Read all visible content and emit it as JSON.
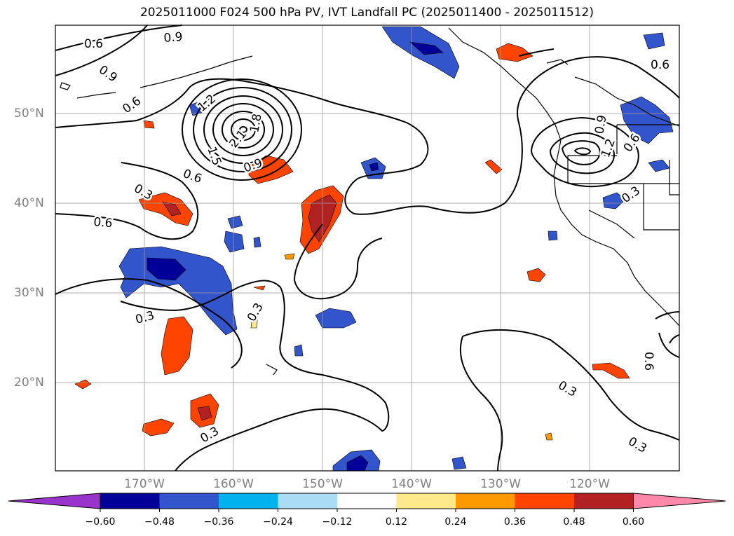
{
  "title": "2025011000 F024 500 hPa PV, IVT Landfall PC (2025011400 - 2025011512)",
  "lat_labels": [
    "50°N",
    "40°N",
    "30°N",
    "20°N"
  ],
  "lon_labels": [
    "170°W",
    "160°W",
    "150°W",
    "140°W",
    "130°W",
    "120°W"
  ],
  "colorbar": {
    "ticks": [
      "−0.60",
      "−0.48",
      "−0.36",
      "−0.24",
      "−0.12",
      "0.12",
      "0.24",
      "0.36",
      "0.48",
      "0.60"
    ],
    "colors": [
      "#9933cc",
      "#000099",
      "#3355cc",
      "#00b2ee",
      "#aadcf5",
      "#ffffff",
      "#ffe98a",
      "#ff9900",
      "#ff4400",
      "#b22222",
      "#ff88aa"
    ]
  },
  "contour_labels": [
    "0.6",
    "0.9",
    "0.9",
    "0.6",
    "1.2",
    "1.8",
    "1.5",
    "2.1",
    "0.9",
    "0.6",
    "0.3",
    "0.6",
    "0.3",
    "0.3",
    "0.6",
    "0.9",
    "1.2",
    "0.6",
    "0.3",
    "0.3",
    "0.3",
    "0.3",
    "0.6"
  ]
}
